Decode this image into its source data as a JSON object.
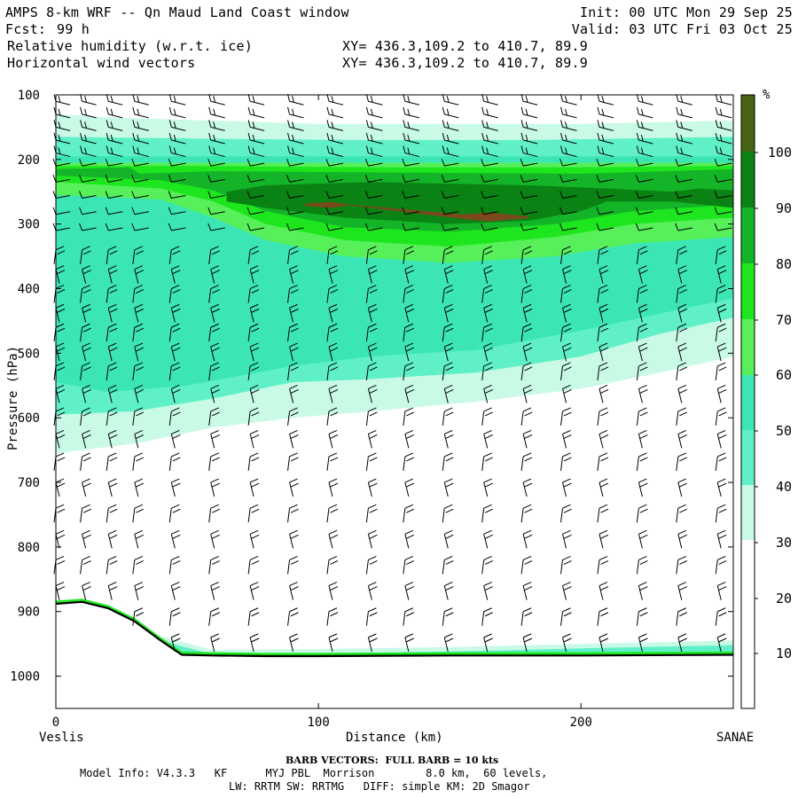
{
  "header": {
    "title": "AMPS 8-km WRF -- Qn Maud Land Coast window",
    "fcst_label": "Fcst:",
    "fcst_value": "99 h",
    "field1": "Relative humidity (w.r.t. ice)",
    "field2": "Horizontal wind vectors",
    "xy1": "XY= 436.3,109.2 to 410.7, 89.9",
    "xy2": "XY= 436.3,109.2 to 410.7, 89.9",
    "init": "Init: 00 UTC Mon 29 Sep 25",
    "valid": "Valid: 03 UTC Fri 03 Oct 25"
  },
  "footer": {
    "barb_note": "BARB VECTORS:  FULL BARB = 10 kts",
    "model_info": "Model Info: V4.3.3   KF      MYJ PBL  Morrison        8.0 km,  60 levels,",
    "model_info2": "LW: RRTM SW: RRTMG   DIFF: simple KM: 2D Smagor"
  },
  "colors": {
    "c0": "#ffffff",
    "c30": "#c8fae6",
    "c40": "#5ff0c8",
    "c50": "#3ce6b4",
    "c60": "#57f05a",
    "c70": "#1ee61e",
    "c80": "#14b428",
    "c90": "#0a8214",
    "c100": "#466414",
    "brown": "#7a4a1e",
    "terrain": "#000000"
  },
  "chart_data": {
    "type": "heatmap",
    "title": "Relative humidity (w.r.t. ice) and horizontal wind vectors cross-section",
    "xlabel": "Distance (km)",
    "ylabel": "Pressure (hPa)",
    "x_start_label": "Veslis",
    "x_end_label": "SANAE",
    "xlim": [
      0,
      258
    ],
    "ylim": [
      1050,
      100
    ],
    "x_ticks": [
      0,
      100,
      200
    ],
    "y_ticks": [
      100,
      200,
      300,
      400,
      500,
      600,
      700,
      800,
      900,
      1000
    ],
    "colorbar": {
      "unit": "%",
      "levels": [
        10,
        20,
        30,
        40,
        50,
        60,
        70,
        80,
        90,
        100
      ],
      "bands": [
        {
          "from": 0,
          "to": 30,
          "color": "#ffffff"
        },
        {
          "from": 30,
          "to": 40,
          "color": "#c8fae6"
        },
        {
          "from": 40,
          "to": 50,
          "color": "#5ff0c8"
        },
        {
          "from": 50,
          "to": 60,
          "color": "#3ce6b4"
        },
        {
          "from": 60,
          "to": 70,
          "color": "#57f05a"
        },
        {
          "from": 70,
          "to": 80,
          "color": "#1ee61e"
        },
        {
          "from": 80,
          "to": 90,
          "color": "#14b428"
        },
        {
          "from": 90,
          "to": 100,
          "color": "#0a8214"
        },
        {
          "from": 100,
          "to": 110,
          "color": "#466414"
        }
      ]
    },
    "surface_pressure": [
      {
        "x": 0,
        "p": 888
      },
      {
        "x": 10,
        "p": 885
      },
      {
        "x": 20,
        "p": 895
      },
      {
        "x": 30,
        "p": 915
      },
      {
        "x": 40,
        "p": 945
      },
      {
        "x": 48,
        "p": 967
      },
      {
        "x": 60,
        "p": 968
      },
      {
        "x": 80,
        "p": 969
      },
      {
        "x": 100,
        "p": 969
      },
      {
        "x": 150,
        "p": 968
      },
      {
        "x": 200,
        "p": 968
      },
      {
        "x": 258,
        "p": 967
      }
    ],
    "rh_regions": [
      {
        "level": 30,
        "top": [
          [
            0,
            130
          ],
          [
            20,
            135
          ],
          [
            60,
            140
          ],
          [
            100,
            145
          ],
          [
            150,
            145
          ],
          [
            200,
            145
          ],
          [
            258,
            140
          ]
        ],
        "bottom": [
          [
            0,
            655
          ],
          [
            30,
            640
          ],
          [
            60,
            615
          ],
          [
            90,
            600
          ],
          [
            120,
            590
          ],
          [
            160,
            575
          ],
          [
            200,
            555
          ],
          [
            230,
            530
          ],
          [
            258,
            505
          ]
        ]
      },
      {
        "level": 40,
        "top": [
          [
            0,
            165
          ],
          [
            60,
            168
          ],
          [
            120,
            170
          ],
          [
            180,
            170
          ],
          [
            258,
            165
          ]
        ],
        "bottom": [
          [
            0,
            595
          ],
          [
            30,
            590
          ],
          [
            60,
            570
          ],
          [
            90,
            545
          ],
          [
            120,
            540
          ],
          [
            160,
            530
          ],
          [
            200,
            505
          ],
          [
            230,
            470
          ],
          [
            258,
            445
          ]
        ]
      },
      {
        "level": 50,
        "top": [
          [
            0,
            195
          ],
          [
            60,
            195
          ],
          [
            120,
            195
          ],
          [
            200,
            195
          ],
          [
            258,
            195
          ]
        ],
        "bottom": [
          [
            0,
            545
          ],
          [
            20,
            560
          ],
          [
            50,
            550
          ],
          [
            90,
            520
          ],
          [
            120,
            505
          ],
          [
            160,
            495
          ],
          [
            200,
            465
          ],
          [
            240,
            430
          ],
          [
            258,
            415
          ]
        ]
      },
      {
        "level": 60,
        "top": [
          [
            0,
            205
          ],
          [
            60,
            205
          ],
          [
            120,
            205
          ],
          [
            200,
            205
          ],
          [
            258,
            205
          ]
        ],
        "bottom": [
          [
            0,
            255
          ],
          [
            40,
            262
          ],
          [
            60,
            290
          ],
          [
            80,
            325
          ],
          [
            110,
            350
          ],
          [
            150,
            360
          ],
          [
            190,
            350
          ],
          [
            220,
            330
          ],
          [
            258,
            320
          ]
        ]
      },
      {
        "level": 70,
        "top": [
          [
            0,
            210
          ],
          [
            60,
            210
          ],
          [
            120,
            212
          ],
          [
            200,
            212
          ],
          [
            258,
            210
          ]
        ],
        "bottom": [
          [
            0,
            235
          ],
          [
            40,
            245
          ],
          [
            60,
            265
          ],
          [
            80,
            300
          ],
          [
            110,
            325
          ],
          [
            150,
            335
          ],
          [
            190,
            320
          ],
          [
            220,
            300
          ],
          [
            258,
            290
          ]
        ]
      },
      {
        "level": 80,
        "top": [
          [
            0,
            215
          ],
          [
            28,
            212
          ],
          [
            32,
            222
          ],
          [
            60,
            218
          ],
          [
            120,
            220
          ],
          [
            200,
            222
          ],
          [
            258,
            215
          ]
        ],
        "bottom": [
          [
            0,
            225
          ],
          [
            40,
            232
          ],
          [
            60,
            248
          ],
          [
            80,
            280
          ],
          [
            110,
            305
          ],
          [
            150,
            312
          ],
          [
            190,
            300
          ],
          [
            220,
            280
          ],
          [
            258,
            270
          ]
        ]
      },
      {
        "level": 90,
        "top": [
          [
            65,
            250
          ],
          [
            80,
            240
          ],
          [
            120,
            235
          ],
          [
            180,
            240
          ],
          [
            210,
            245
          ],
          [
            235,
            250
          ],
          [
            245,
            245
          ],
          [
            258,
            248
          ]
        ],
        "bottom": [
          [
            65,
            265
          ],
          [
            80,
            275
          ],
          [
            110,
            290
          ],
          [
            150,
            300
          ],
          [
            180,
            295
          ],
          [
            200,
            280
          ],
          [
            210,
            265
          ],
          [
            235,
            265
          ],
          [
            258,
            275
          ]
        ]
      },
      {
        "level": 100,
        "top": [
          [
            95,
            268
          ],
          [
            105,
            266
          ],
          [
            112,
            270
          ],
          [
            155,
            285
          ],
          [
            165,
            282
          ],
          [
            180,
            288
          ]
        ],
        "bottom": [
          [
            95,
            272
          ],
          [
            105,
            275
          ],
          [
            112,
            271
          ],
          [
            155,
            292
          ],
          [
            165,
            296
          ],
          [
            180,
            291
          ]
        ]
      }
    ],
    "near_surface_band": [
      {
        "x": 0,
        "ptop": 885
      },
      {
        "x": 40,
        "ptop": 938
      },
      {
        "x": 60,
        "ptop": 960
      },
      {
        "x": 100,
        "ptop": 958
      },
      {
        "x": 150,
        "ptop": 955
      },
      {
        "x": 200,
        "ptop": 950
      },
      {
        "x": 258,
        "ptop": 945
      }
    ],
    "wind_barb_columns_km": [
      0,
      10,
      20,
      30,
      44,
      59,
      74,
      89,
      104,
      119,
      133,
      148,
      163,
      178,
      193,
      207,
      222,
      237,
      252
    ],
    "wind_barb_levels_hpa": [
      110,
      130,
      150,
      170,
      190,
      210,
      235,
      260,
      285,
      310,
      340,
      370,
      400,
      430,
      460,
      490,
      520,
      555,
      590,
      625,
      660,
      700,
      740,
      780,
      820,
      860,
      900,
      940
    ]
  }
}
